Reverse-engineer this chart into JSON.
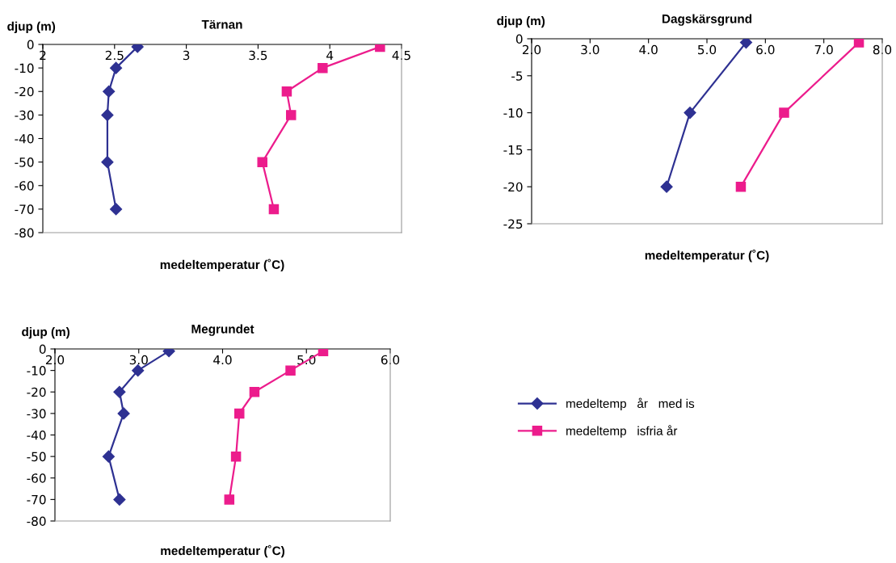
{
  "chart_data": [
    {
      "type": "line",
      "title": "Tärnan",
      "xlabel": "medeltemperatur (˚C)",
      "ylabel": "djup (m)",
      "xlim": [
        2,
        4.5
      ],
      "xticks": [
        2,
        2.5,
        3,
        3.5,
        4,
        4.5
      ],
      "ylim": [
        -80,
        0
      ],
      "yticks": [
        0,
        -10,
        -20,
        -30,
        -40,
        -50,
        -60,
        -70,
        -80
      ],
      "grid": false,
      "legend": false,
      "series": [
        {
          "color": "#2e3192",
          "marker": "diamond",
          "x": [
            2.66,
            2.51,
            2.46,
            2.45,
            2.45,
            2.51
          ],
          "values": [
            -1,
            -10,
            -20,
            -30,
            -50,
            -70
          ]
        },
        {
          "color": "#ec1c8c",
          "marker": "square",
          "x": [
            4.35,
            3.95,
            3.7,
            3.73,
            3.53,
            3.61
          ],
          "values": [
            -1,
            -10,
            -20,
            -30,
            -50,
            -70
          ]
        }
      ]
    },
    {
      "type": "line",
      "title": "Dagskärsgrund",
      "xlabel": "medeltemperatur (˚C)",
      "ylabel": "djup (m)",
      "xlim": [
        2,
        8
      ],
      "xticks": [
        {
          "value": 2,
          "label": "2.0"
        },
        {
          "value": 3,
          "label": "3.0"
        },
        {
          "value": 4,
          "label": "4.0"
        },
        {
          "value": 5,
          "label": "5.0"
        },
        {
          "value": 6,
          "label": "6.0"
        },
        {
          "value": 7,
          "label": "7.0"
        },
        {
          "value": 8,
          "label": "8.0"
        }
      ],
      "ylim": [
        -25,
        0
      ],
      "yticks": [
        0,
        -5,
        -10,
        -15,
        -20,
        -25
      ],
      "grid": false,
      "legend": false,
      "series": [
        {
          "color": "#2e3192",
          "marker": "diamond",
          "x": [
            5.67,
            4.71,
            4.31
          ],
          "values": [
            -0.5,
            -10,
            -20
          ]
        },
        {
          "color": "#ec1c8c",
          "marker": "square",
          "x": [
            7.6,
            6.32,
            5.58
          ],
          "values": [
            -0.5,
            -10,
            -20
          ]
        }
      ]
    },
    {
      "type": "line",
      "title": "Megrundet",
      "xlabel": "medeltemperatur (˚C)",
      "ylabel": "djup (m)",
      "xlim": [
        2,
        6
      ],
      "xticks": [
        {
          "value": 2,
          "label": "2.0"
        },
        {
          "value": 3,
          "label": "3.0"
        },
        {
          "value": 4,
          "label": "4.0"
        },
        {
          "value": 5,
          "label": "5.0"
        },
        {
          "value": 6,
          "label": "6.0"
        }
      ],
      "ylim": [
        -80,
        0
      ],
      "yticks": [
        0,
        -10,
        -20,
        -30,
        -40,
        -50,
        -60,
        -70,
        -80
      ],
      "grid": false,
      "legend": "right",
      "series": [
        {
          "name": "medeltemp   år   med is",
          "color": "#2e3192",
          "marker": "diamond",
          "x": [
            3.36,
            2.99,
            2.77,
            2.82,
            2.64,
            2.77
          ],
          "values": [
            -1,
            -10,
            -20,
            -30,
            -50,
            -70
          ]
        },
        {
          "name": "medeltemp   isfria år",
          "color": "#ec1c8c",
          "marker": "square",
          "x": [
            5.2,
            4.81,
            4.38,
            4.2,
            4.16,
            4.08
          ],
          "values": [
            -1,
            -10,
            -20,
            -30,
            -50,
            -70
          ]
        }
      ]
    }
  ]
}
